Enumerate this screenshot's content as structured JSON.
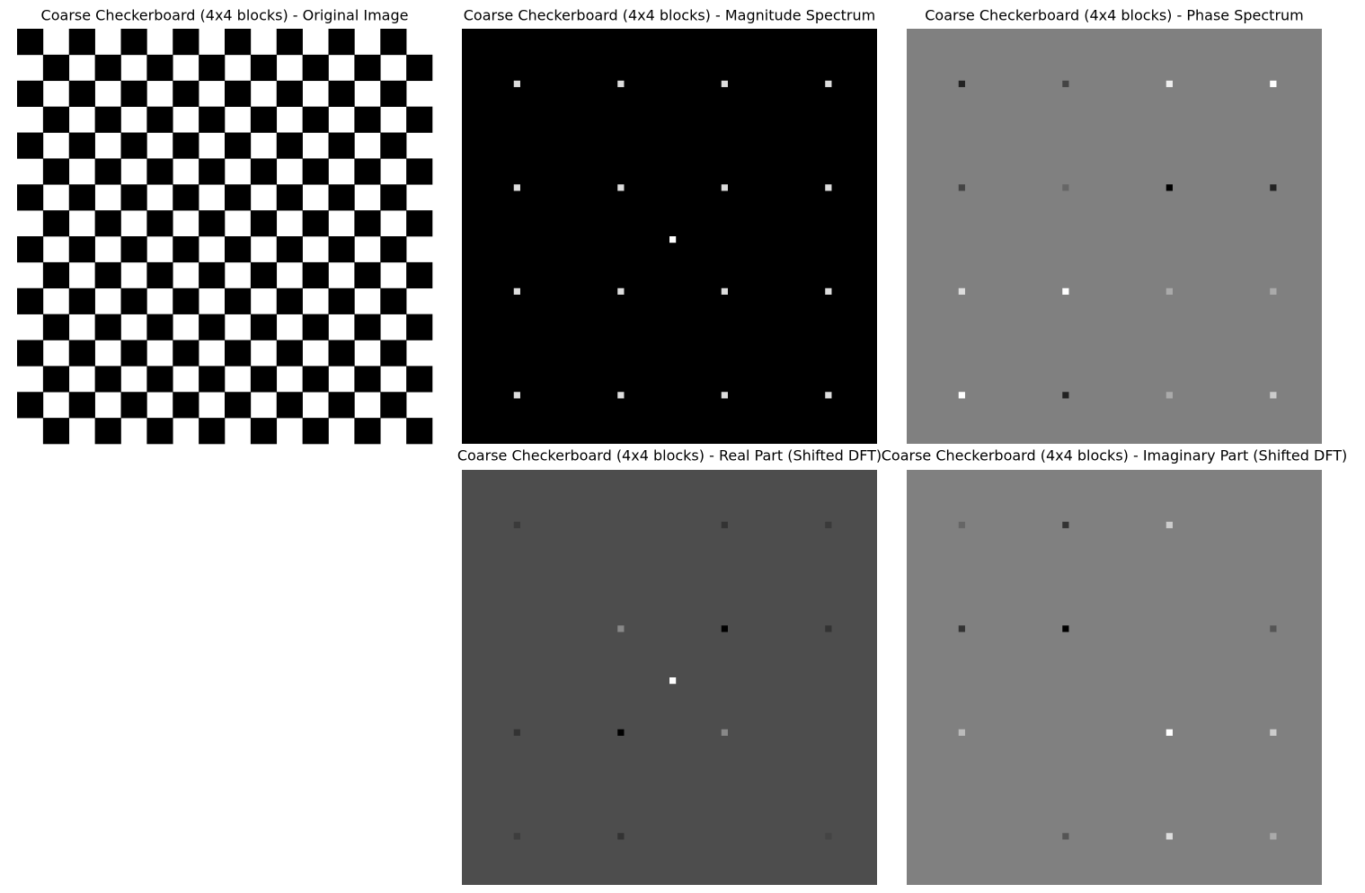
{
  "panels": [
    {
      "title": "Coarse Checkerboard (4x4 blocks) - Original Image"
    },
    {
      "title": "Coarse Checkerboard (4x4 blocks) - Magnitude Spectrum"
    },
    {
      "title": "Coarse Checkerboard (4x4 blocks) - Phase Spectrum"
    },
    {
      "title": "Coarse Checkerboard (4x4 blocks) - Real Part (Shifted DFT)"
    },
    {
      "title": "Coarse Checkerboard (4x4 blocks) - Imaginary Part (Shifted DFT)"
    }
  ]
}
